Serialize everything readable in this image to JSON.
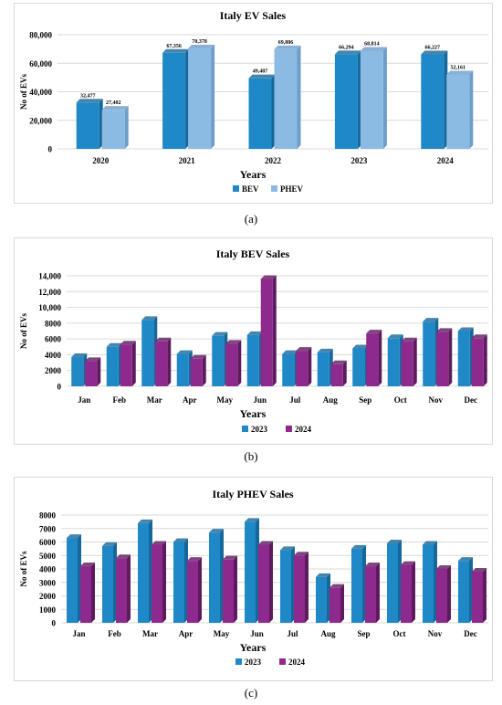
{
  "colors": {
    "blue": "#1f88c6",
    "blueDark": "#16679a",
    "lightBlue": "#8bbbe3",
    "purple": "#8e2a8e",
    "purpleDark": "#5e1a5e",
    "grid": "#d9d9d9",
    "axisText": "#000000"
  },
  "chart_data": [
    {
      "type": "bar",
      "title": "Italy EV Sales",
      "xlabel": "Years",
      "ylabel": "No of EVs",
      "categories": [
        "2020",
        "2021",
        "2022",
        "2023",
        "2024"
      ],
      "ylim": [
        0,
        80000
      ],
      "yticks": [
        "0",
        "20,000",
        "40,000",
        "60,000",
        "80,000"
      ],
      "ytick_values": [
        0,
        20000,
        40000,
        60000,
        80000
      ],
      "series": [
        {
          "name": "BEV",
          "values": [
            32477,
            67356,
            49487,
            66294,
            66227
          ],
          "labels": [
            "32,477",
            "67,356",
            "49,487",
            "66,294",
            "66,227"
          ]
        },
        {
          "name": "PHEV",
          "values": [
            27402,
            70378,
            69806,
            68814,
            52161
          ],
          "labels": [
            "27,402",
            "70,378",
            "69,806",
            "68,814",
            "52,161"
          ]
        }
      ],
      "legend": "bottom",
      "grid": true,
      "caption": "(a)"
    },
    {
      "type": "bar",
      "title": "Italy BEV Sales",
      "xlabel": "Years",
      "ylabel": "No of EVs",
      "categories": [
        "Jan",
        "Feb",
        "Mar",
        "Apr",
        "May",
        "Jun",
        "Jul",
        "Aug",
        "Sep",
        "Oct",
        "Nov",
        "Dec"
      ],
      "ylim": [
        0,
        14000
      ],
      "yticks": [
        "0",
        "2000",
        "4000",
        "6000",
        "8000",
        "10,000",
        "12,000",
        "14,000"
      ],
      "ytick_values": [
        0,
        2000,
        4000,
        6000,
        8000,
        10000,
        12000,
        14000
      ],
      "series": [
        {
          "name": "2023",
          "values": [
            3700,
            5000,
            8400,
            4100,
            6400,
            6500,
            4100,
            4300,
            4800,
            6100,
            8200,
            7000
          ]
        },
        {
          "name": "2024",
          "values": [
            3200,
            5300,
            5700,
            3500,
            5400,
            13600,
            4500,
            2800,
            6700,
            5700,
            6900,
            6100
          ]
        }
      ],
      "legend": "bottom",
      "grid": true,
      "caption": "(b)"
    },
    {
      "type": "bar",
      "title": "Italy PHEV Sales",
      "xlabel": "Years",
      "ylabel": "No of EVs",
      "categories": [
        "Jan",
        "Feb",
        "Mar",
        "Apr",
        "May",
        "Jun",
        "Jul",
        "Aug",
        "Sep",
        "Oct",
        "Nov",
        "Dec"
      ],
      "ylim": [
        0,
        8000
      ],
      "yticks": [
        "0",
        "1000",
        "2000",
        "3000",
        "4000",
        "5000",
        "6000",
        "7000",
        "8000"
      ],
      "ytick_values": [
        0,
        1000,
        2000,
        3000,
        4000,
        5000,
        6000,
        7000,
        8000
      ],
      "series": [
        {
          "name": "2023",
          "values": [
            6300,
            5700,
            7400,
            6000,
            6700,
            7500,
            5400,
            3400,
            5500,
            5900,
            5800,
            4600
          ]
        },
        {
          "name": "2024",
          "values": [
            4200,
            4800,
            5800,
            4600,
            4700,
            5800,
            5000,
            2600,
            4200,
            4300,
            4000,
            3800
          ]
        }
      ],
      "legend": "bottom",
      "grid": true,
      "caption": "(c)"
    }
  ]
}
